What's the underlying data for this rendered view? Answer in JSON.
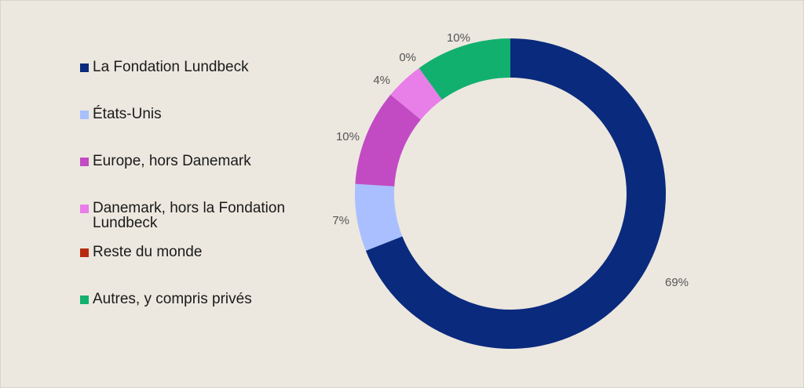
{
  "chart_data": {
    "type": "pie",
    "variant": "donut",
    "categories": [
      "La Fondation Lundbeck",
      "États-Unis",
      "Europe, hors Danemark",
      "Danemark, hors la Fondation Lundbeck",
      "Reste du monde",
      "Autres, y compris privés"
    ],
    "values": [
      69,
      7,
      10,
      4,
      0,
      10
    ],
    "data_labels": [
      "69%",
      "7%",
      "10%",
      "4%",
      "0%",
      "10%"
    ],
    "colors": [
      "#0a2a7d",
      "#a9bfff",
      "#c24bc4",
      "#e87ee8",
      "#b82a0f",
      "#12b06f"
    ],
    "legend_position": "left",
    "title": ""
  }
}
